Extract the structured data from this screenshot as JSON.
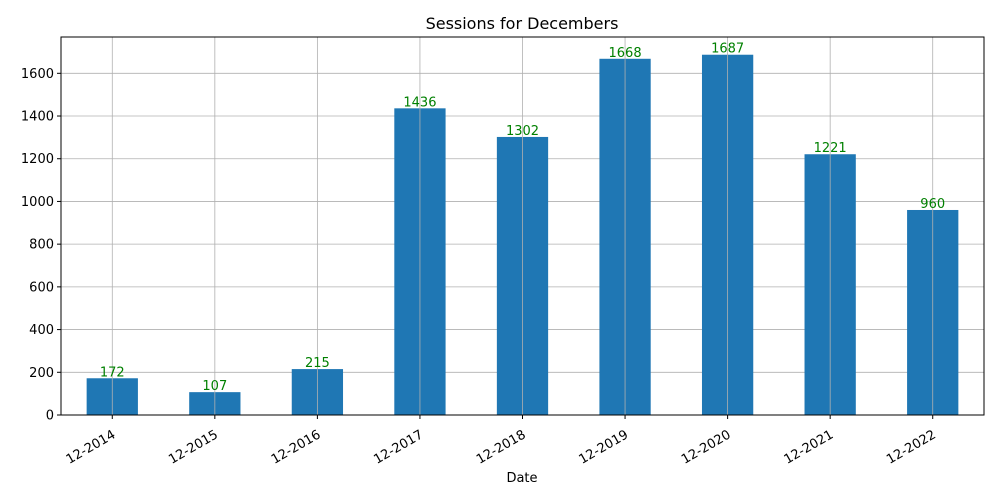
{
  "chart_data": {
    "type": "bar",
    "title": "Sessions for Decembers",
    "xlabel": "Date",
    "ylabel": "",
    "categories": [
      "12-2014",
      "12-2015",
      "12-2016",
      "12-2017",
      "12-2018",
      "12-2019",
      "12-2020",
      "12-2021",
      "12-2022"
    ],
    "values": [
      172,
      107,
      215,
      1436,
      1302,
      1668,
      1687,
      1221,
      960
    ],
    "ylim": [
      0,
      1770
    ],
    "yticks": [
      0,
      200,
      400,
      600,
      800,
      1000,
      1200,
      1400,
      1600
    ],
    "grid": true,
    "x_tick_rotation_deg": 30,
    "bar_color": "#1f77b4",
    "data_label_color": "#008000",
    "grid_color": "#b0b0b0"
  }
}
